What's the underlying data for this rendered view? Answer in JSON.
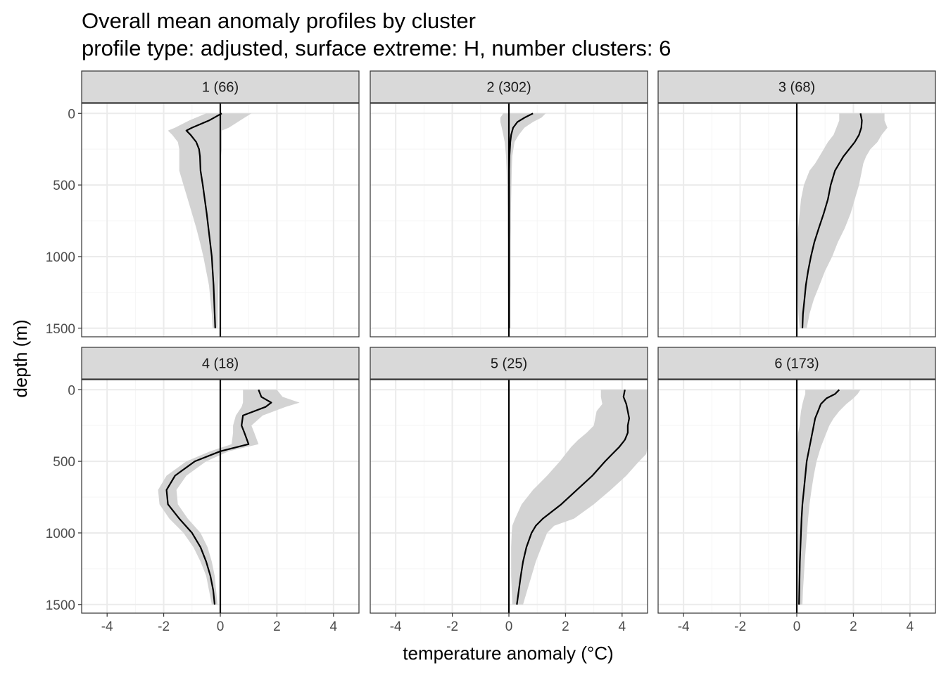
{
  "chart_data": {
    "type": "line",
    "title": "Overall mean anomaly profiles by cluster",
    "subtitle": "profile type: adjusted, surface extreme: H, number clusters: 6",
    "xlabel": "temperature anomaly (°C)",
    "ylabel": "depth (m)",
    "xlim": [
      -4.9,
      4.9
    ],
    "ylim": [
      1560,
      -70
    ],
    "x_ticks": [
      -4,
      -2,
      0,
      2,
      4
    ],
    "x_tick_labels": [
      "-4",
      "-2",
      "0",
      "2",
      "4"
    ],
    "y_ticks": [
      0,
      500,
      1000,
      1500
    ],
    "y_tick_labels": [
      "0",
      "500",
      "1000",
      "1500"
    ],
    "y_reversed": true,
    "grid": true,
    "reference_line_x": 0,
    "colors": {
      "line": "#000000",
      "band": "#d3d3d3",
      "strip": "#d9d9d9",
      "grid_major": "#ebebeb",
      "grid_minor": "#f5f5f5",
      "panel_border": "#333333"
    },
    "panels": [
      {
        "label": "1 (66)",
        "depth": [
          0,
          50,
          100,
          120,
          150,
          200,
          250,
          300,
          400,
          500,
          600,
          700,
          800,
          900,
          1000,
          1100,
          1200,
          1300,
          1400,
          1500
        ],
        "mean": [
          0.05,
          -0.4,
          -1.0,
          -1.2,
          -1.05,
          -0.85,
          -0.75,
          -0.72,
          -0.7,
          -0.62,
          -0.55,
          -0.48,
          -0.42,
          -0.36,
          -0.3,
          -0.27,
          -0.24,
          -0.22,
          -0.2,
          -0.18
        ],
        "lower": [
          -0.5,
          -1.1,
          -1.6,
          -1.85,
          -1.7,
          -1.5,
          -1.45,
          -1.45,
          -1.45,
          -1.3,
          -1.15,
          -1.0,
          -0.85,
          -0.72,
          -0.6,
          -0.5,
          -0.4,
          -0.35,
          -0.3,
          -0.27
        ],
        "upper": [
          1.1,
          0.7,
          0.3,
          0.05,
          0.05,
          0.05,
          0.05,
          0.02,
          0.0,
          0.0,
          0.0,
          0.0,
          0.0,
          -0.02,
          -0.03,
          -0.05,
          -0.07,
          -0.08,
          -0.09,
          -0.1
        ]
      },
      {
        "label": "2 (302)",
        "depth": [
          0,
          30,
          60,
          100,
          150,
          200,
          300,
          400,
          500,
          600,
          700,
          800,
          900,
          1000,
          1100,
          1200,
          1300,
          1400,
          1500
        ],
        "mean": [
          0.85,
          0.55,
          0.3,
          0.15,
          0.08,
          0.05,
          0.02,
          0.01,
          0.01,
          0.01,
          0.01,
          0.01,
          0.01,
          0.01,
          0.01,
          0.01,
          0.01,
          0.01,
          0.01
        ],
        "lower": [
          -0.2,
          -0.3,
          -0.3,
          -0.25,
          -0.2,
          -0.15,
          -0.1,
          -0.08,
          -0.07,
          -0.06,
          -0.05,
          -0.05,
          -0.04,
          -0.04,
          -0.04,
          -0.04,
          -0.03,
          -0.03,
          -0.03
        ],
        "upper": [
          1.3,
          1.15,
          0.85,
          0.55,
          0.35,
          0.2,
          0.12,
          0.1,
          0.09,
          0.08,
          0.07,
          0.07,
          0.06,
          0.06,
          0.06,
          0.06,
          0.05,
          0.05,
          0.05
        ]
      },
      {
        "label": "3 (68)",
        "depth": [
          0,
          50,
          100,
          150,
          200,
          250,
          300,
          350,
          400,
          500,
          600,
          700,
          800,
          900,
          1000,
          1100,
          1200,
          1300,
          1400,
          1500
        ],
        "mean": [
          2.25,
          2.3,
          2.28,
          2.2,
          2.05,
          1.85,
          1.65,
          1.5,
          1.35,
          1.2,
          1.1,
          0.95,
          0.78,
          0.62,
          0.5,
          0.4,
          0.32,
          0.27,
          0.22,
          0.2
        ],
        "lower": [
          1.5,
          1.5,
          1.4,
          1.3,
          1.1,
          0.95,
          0.8,
          0.65,
          0.45,
          0.25,
          0.15,
          0.1,
          0.05,
          0.02,
          0.02,
          0.02,
          0.03,
          0.04,
          0.06,
          0.1
        ],
        "upper": [
          3.1,
          3.1,
          3.2,
          3.0,
          2.85,
          2.6,
          2.45,
          2.35,
          2.3,
          2.2,
          2.05,
          1.9,
          1.7,
          1.45,
          1.25,
          1.0,
          0.8,
          0.6,
          0.45,
          0.35
        ]
      },
      {
        "label": "4 (18)",
        "depth": [
          0,
          50,
          90,
          120,
          180,
          250,
          300,
          380,
          430,
          500,
          600,
          700,
          800,
          900,
          1000,
          1100,
          1200,
          1300,
          1400,
          1500
        ],
        "mean": [
          1.35,
          1.45,
          1.8,
          1.6,
          0.8,
          0.75,
          0.85,
          1.0,
          0.0,
          -0.9,
          -1.6,
          -1.9,
          -1.85,
          -1.45,
          -1.0,
          -0.7,
          -0.5,
          -0.35,
          -0.25,
          -0.2
        ],
        "lower": [
          0.8,
          0.8,
          0.8,
          0.75,
          0.55,
          0.45,
          0.45,
          0.4,
          -0.35,
          -1.2,
          -1.9,
          -2.2,
          -2.15,
          -1.8,
          -1.3,
          -0.95,
          -0.7,
          -0.5,
          -0.4,
          -0.3
        ],
        "upper": [
          2.0,
          2.2,
          2.8,
          2.3,
          1.5,
          1.1,
          1.2,
          1.35,
          0.3,
          -0.5,
          -1.2,
          -1.55,
          -1.5,
          -1.15,
          -0.7,
          -0.45,
          -0.3,
          -0.2,
          -0.15,
          -0.1
        ]
      },
      {
        "label": "5 (25)",
        "depth": [
          0,
          50,
          100,
          150,
          200,
          250,
          300,
          350,
          400,
          450,
          500,
          600,
          700,
          800,
          900,
          950,
          1000,
          1100,
          1200,
          1300,
          1400,
          1500
        ],
        "mean": [
          4.1,
          4.05,
          4.15,
          4.2,
          4.25,
          4.2,
          4.2,
          4.1,
          3.9,
          3.65,
          3.4,
          2.95,
          2.4,
          1.85,
          1.2,
          0.95,
          0.8,
          0.62,
          0.5,
          0.42,
          0.35,
          0.28
        ],
        "lower": [
          3.25,
          3.25,
          3.3,
          3.1,
          3.05,
          3.0,
          2.75,
          2.45,
          2.2,
          2.0,
          1.8,
          1.35,
          0.85,
          0.45,
          0.22,
          0.12,
          0.1,
          0.08,
          0.08,
          0.08,
          0.1,
          0.12
        ],
        "upper": [
          4.9,
          4.9,
          4.9,
          4.9,
          4.9,
          4.9,
          4.9,
          4.9,
          4.9,
          4.85,
          4.6,
          4.15,
          3.6,
          3.0,
          2.3,
          1.6,
          1.35,
          1.15,
          0.95,
          0.8,
          0.65,
          0.5
        ]
      },
      {
        "label": "6 (173)",
        "depth": [
          0,
          30,
          60,
          100,
          150,
          200,
          250,
          300,
          400,
          500,
          600,
          700,
          800,
          900,
          1000,
          1100,
          1200,
          1300,
          1400,
          1500
        ],
        "mean": [
          1.5,
          1.35,
          1.05,
          0.85,
          0.75,
          0.65,
          0.6,
          0.55,
          0.45,
          0.35,
          0.3,
          0.25,
          0.2,
          0.17,
          0.15,
          0.13,
          0.11,
          0.1,
          0.09,
          0.08
        ],
        "lower": [
          0.3,
          0.3,
          0.25,
          0.2,
          0.15,
          0.12,
          0.1,
          0.05,
          0.02,
          0.0,
          -0.02,
          -0.03,
          -0.03,
          -0.03,
          -0.02,
          -0.02,
          -0.02,
          -0.02,
          -0.01,
          -0.01
        ],
        "upper": [
          2.25,
          2.15,
          2.0,
          1.75,
          1.5,
          1.3,
          1.15,
          1.05,
          0.85,
          0.7,
          0.6,
          0.52,
          0.45,
          0.4,
          0.36,
          0.32,
          0.28,
          0.25,
          0.22,
          0.2
        ]
      }
    ]
  }
}
